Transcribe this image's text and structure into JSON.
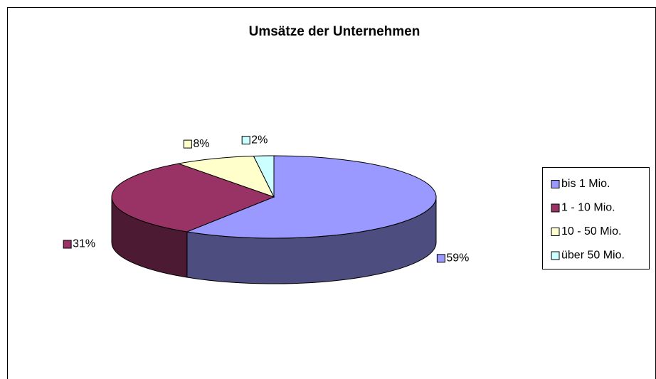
{
  "chart_data": {
    "type": "pie",
    "title": "Umsätze der Unternehmen",
    "categories": [
      "bis 1 Mio.",
      "1 - 10 Mio.",
      "10 - 50 Mio.",
      "über 50 Mio."
    ],
    "values": [
      59,
      31,
      8,
      2
    ],
    "value_labels": [
      "59%",
      "31%",
      "8%",
      "2%"
    ],
    "colors": [
      "#9999ff",
      "#993366",
      "#ffffcc",
      "#ccffff"
    ],
    "legend": "right"
  }
}
